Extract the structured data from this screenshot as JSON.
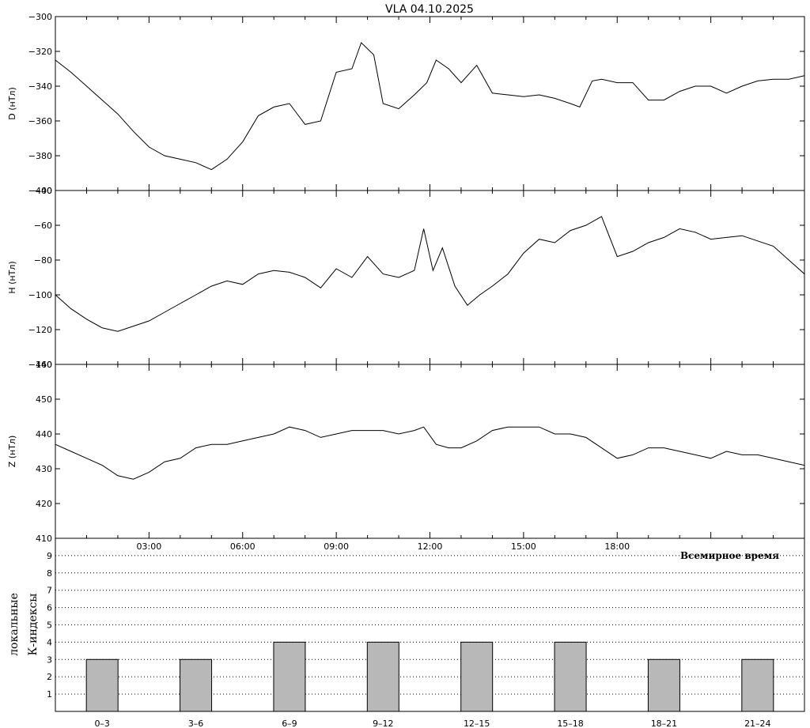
{
  "title": "VLA   04.10.2025",
  "time_ticks": [
    "03:00",
    "06:00",
    "09:00",
    "12:00",
    "15:00",
    "18:00"
  ],
  "xlabel_universal_time": "Всемирное время",
  "k_ylabel_1": "локальные",
  "k_ylabel_2": "К-индексы",
  "chart_data": [
    {
      "type": "line",
      "panel": "D",
      "ylabel": "D (нТл)",
      "ylim": [
        -400,
        -300
      ],
      "y_ticks": [
        -300,
        -320,
        -340,
        -360,
        -380,
        -400
      ],
      "x_unit": "hours UT",
      "xlim": [
        0,
        24
      ],
      "x": [
        0,
        0.5,
        1,
        1.5,
        2,
        2.5,
        3,
        3.5,
        4,
        4.5,
        5,
        5.5,
        6,
        6.5,
        7,
        7.5,
        8,
        8.5,
        9,
        9.5,
        9.8,
        10.2,
        10.5,
        11,
        11.5,
        11.9,
        12.2,
        12.6,
        13,
        13.5,
        14,
        14.5,
        15,
        15.5,
        16,
        16.5,
        16.8,
        17.2,
        17.5,
        18,
        18.5,
        19,
        19.5,
        20,
        20.5,
        21,
        21.5,
        22,
        22.5,
        23,
        23.5,
        24
      ],
      "values": [
        -325,
        -332,
        -340,
        -348,
        -356,
        -366,
        -375,
        -380,
        -382,
        -384,
        -388,
        -382,
        -372,
        -357,
        -352,
        -350,
        -362,
        -360,
        -332,
        -330,
        -315,
        -322,
        -350,
        -353,
        -345,
        -338,
        -325,
        -330,
        -338,
        -328,
        -344,
        -345,
        -346,
        -345,
        -347,
        -350,
        -352,
        -337,
        -336,
        -338,
        -338,
        -348,
        -348,
        -343,
        -340,
        -340,
        -344,
        -340,
        -337,
        -336,
        -336,
        -334
      ]
    },
    {
      "type": "line",
      "panel": "H",
      "ylabel": "H (нТл)",
      "ylim": [
        -140,
        -40
      ],
      "y_ticks": [
        -40,
        -60,
        -80,
        -100,
        -120,
        -140
      ],
      "x_unit": "hours UT",
      "xlim": [
        0,
        24
      ],
      "x": [
        0,
        0.5,
        1,
        1.5,
        2,
        2.5,
        3,
        3.5,
        4,
        4.5,
        5,
        5.5,
        6,
        6.5,
        7,
        7.5,
        8,
        8.5,
        9,
        9.5,
        10,
        10.5,
        11,
        11.5,
        11.8,
        12.1,
        12.4,
        12.8,
        13.2,
        13.6,
        14,
        14.5,
        15,
        15.5,
        16,
        16.5,
        17,
        17.5,
        18,
        18.5,
        19,
        19.5,
        20,
        20.5,
        21,
        21.5,
        22,
        22.5,
        23,
        23.5,
        24
      ],
      "values": [
        -100,
        -108,
        -114,
        -119,
        -121,
        -118,
        -115,
        -110,
        -105,
        -100,
        -95,
        -92,
        -94,
        -88,
        -86,
        -87,
        -90,
        -96,
        -85,
        -90,
        -78,
        -88,
        -90,
        -86,
        -62,
        -86,
        -73,
        -95,
        -106,
        -100,
        -95,
        -88,
        -76,
        -68,
        -70,
        -63,
        -60,
        -55,
        -78,
        -75,
        -70,
        -67,
        -62,
        -64,
        -68,
        -67,
        -66,
        -69,
        -72,
        -80,
        -88
      ]
    },
    {
      "type": "line",
      "panel": "Z",
      "ylabel": "Z (нТл)",
      "ylim": [
        410,
        460
      ],
      "y_ticks": [
        460,
        450,
        440,
        430,
        420,
        410
      ],
      "x_unit": "hours UT",
      "xlim": [
        0,
        24
      ],
      "x": [
        0,
        0.5,
        1,
        1.5,
        2,
        2.5,
        3,
        3.5,
        4,
        4.5,
        5,
        5.5,
        6,
        6.5,
        7,
        7.5,
        8,
        8.5,
        9,
        9.5,
        10,
        10.5,
        11,
        11.5,
        11.8,
        12.2,
        12.6,
        13,
        13.5,
        14,
        14.5,
        15,
        15.5,
        16,
        16.5,
        17,
        17.5,
        18,
        18.5,
        19,
        19.5,
        20,
        20.5,
        21,
        21.5,
        22,
        22.5,
        23,
        23.5,
        24
      ],
      "values": [
        437,
        435,
        433,
        431,
        428,
        427,
        429,
        432,
        433,
        436,
        437,
        437,
        438,
        439,
        440,
        442,
        441,
        439,
        440,
        441,
        441,
        441,
        440,
        441,
        442,
        437,
        436,
        436,
        438,
        441,
        442,
        442,
        442,
        440,
        440,
        439,
        436,
        433,
        434,
        436,
        436,
        435,
        434,
        433,
        435,
        434,
        434,
        433,
        432,
        431
      ]
    },
    {
      "type": "bar",
      "panel": "K",
      "categories": [
        "0–3",
        "3–6",
        "6–9",
        "9–12",
        "12–15",
        "15–18",
        "18–21",
        "21–24"
      ],
      "values": [
        3,
        3,
        4,
        4,
        4,
        4,
        3,
        3
      ],
      "ylim": [
        0,
        10
      ],
      "y_ticks": [
        1,
        2,
        3,
        4,
        5,
        6,
        7,
        8,
        9
      ],
      "grid": true,
      "bar_color": "#b8b8b8"
    }
  ]
}
